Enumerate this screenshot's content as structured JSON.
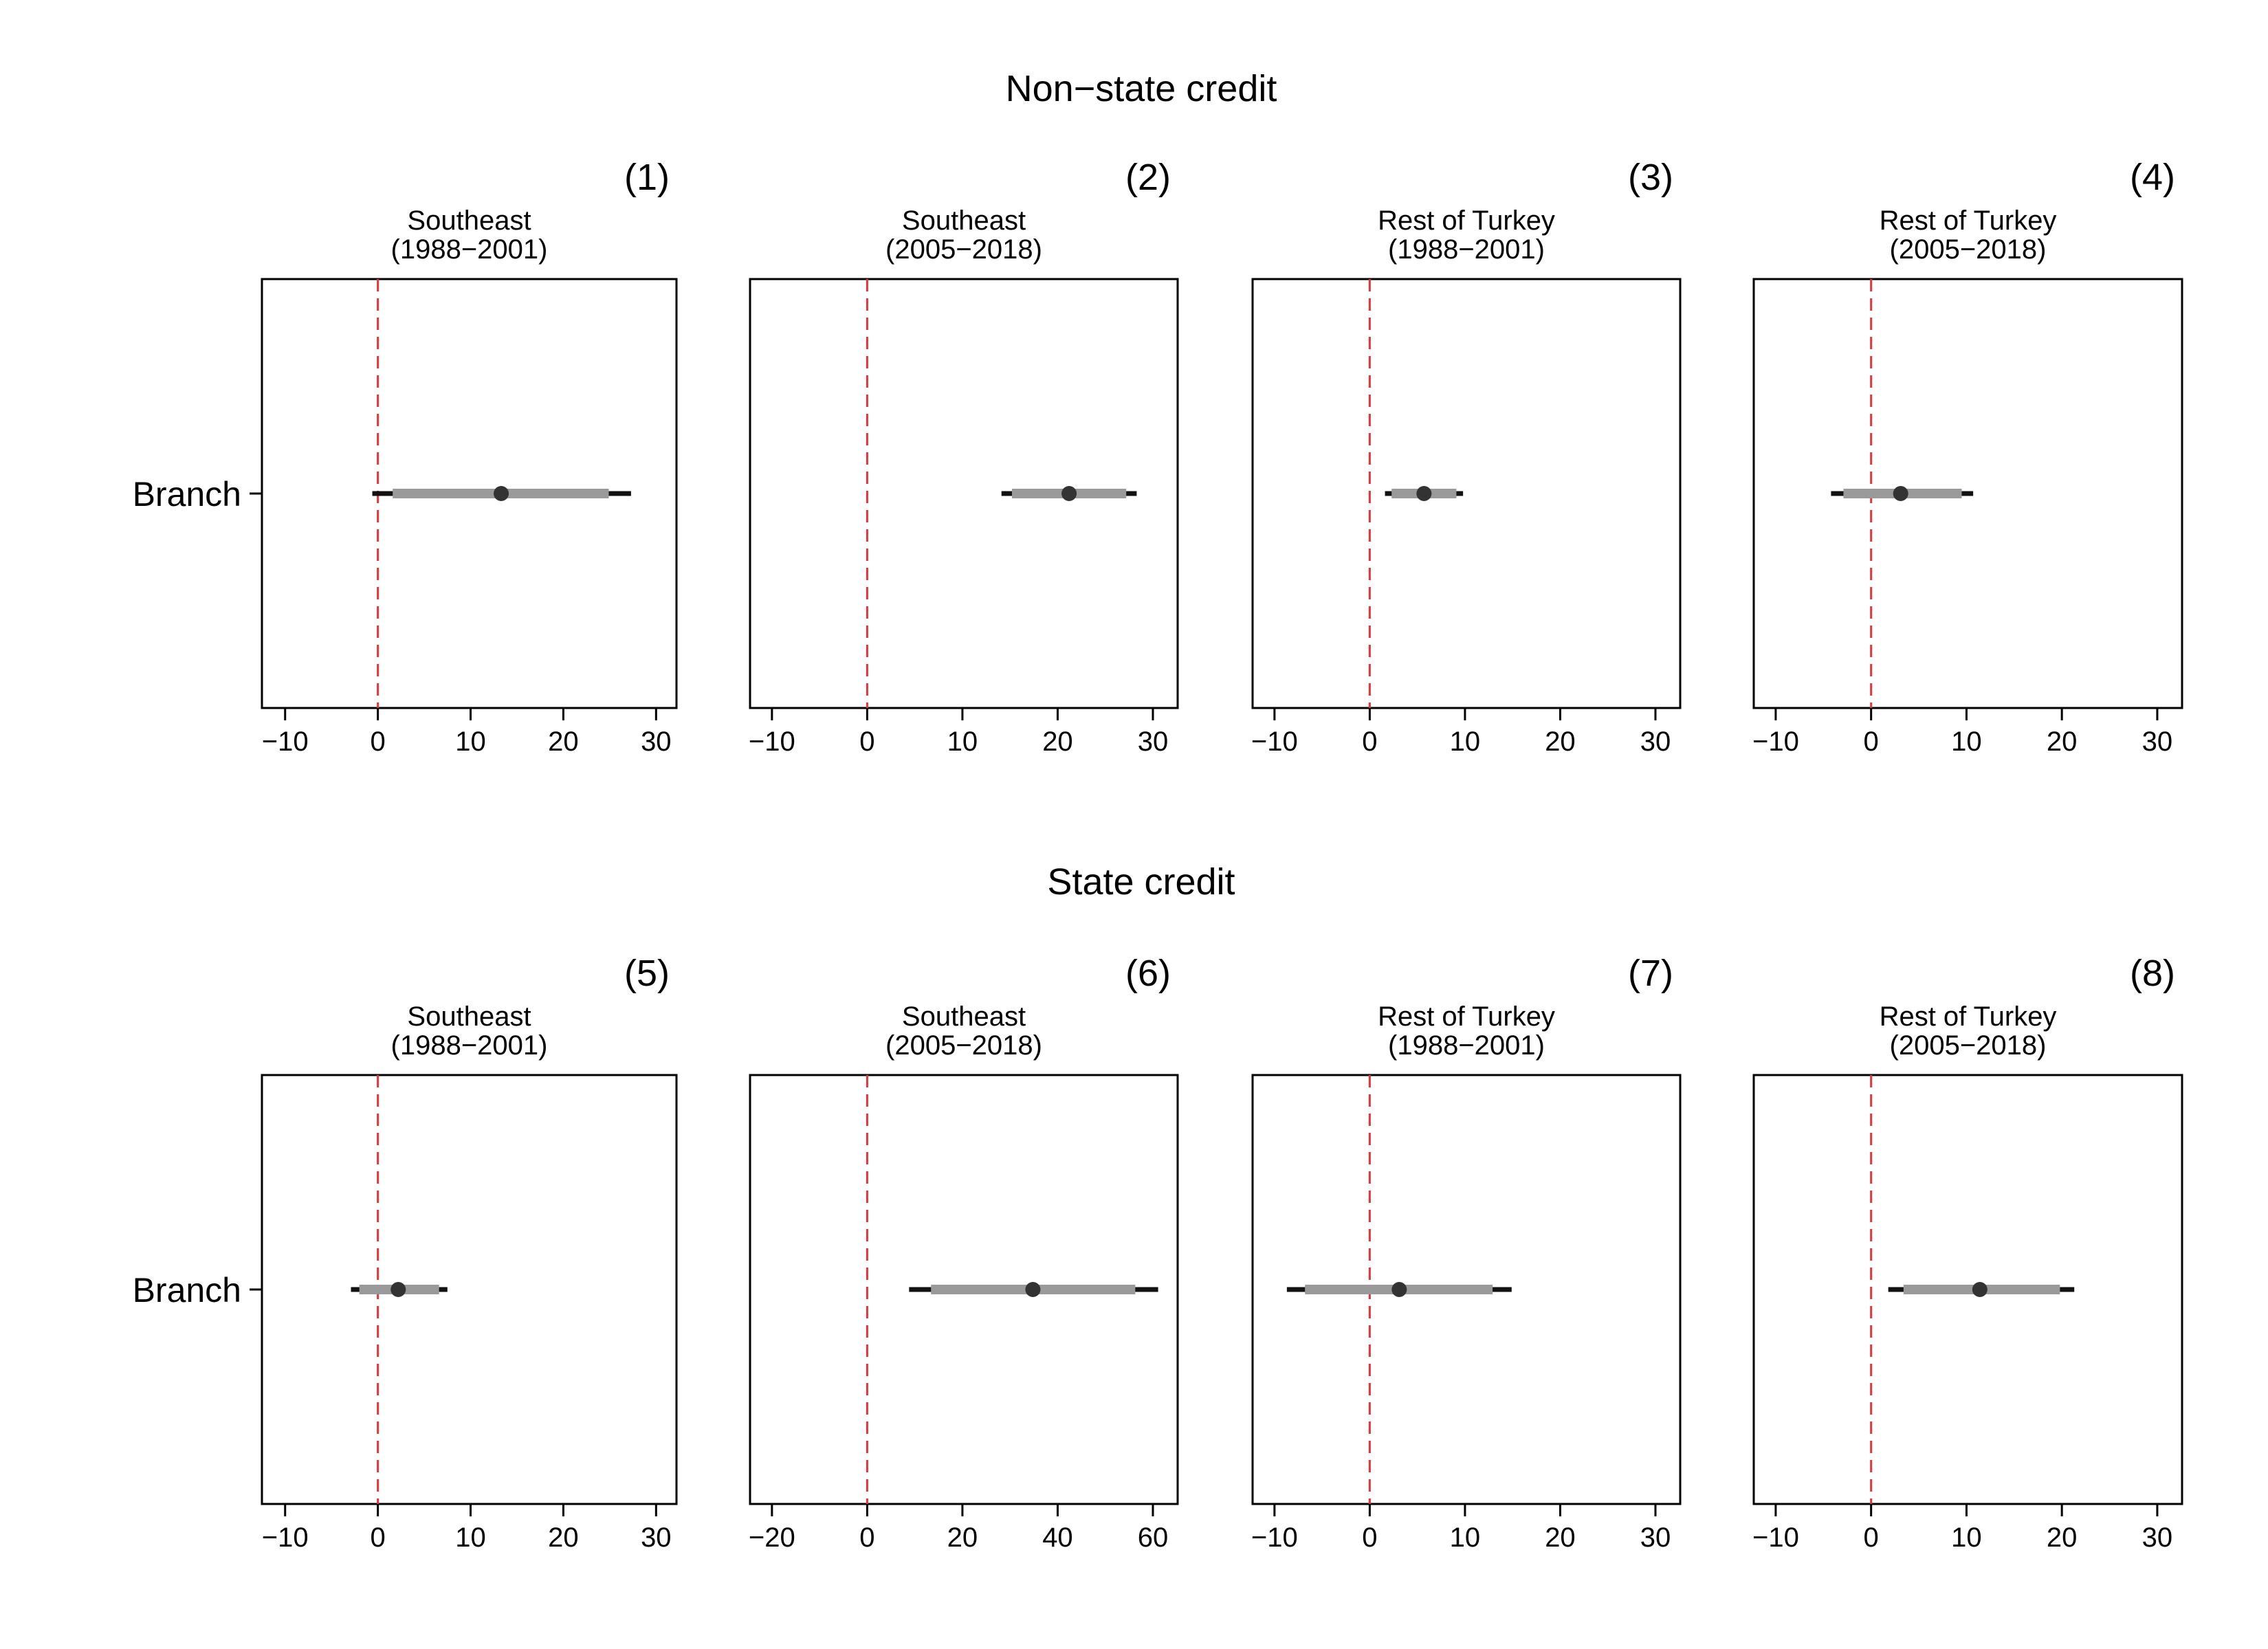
{
  "colors": {
    "frame": "#000000",
    "reference_line": "#e8333a",
    "ci_outer": "#111111",
    "ci_inner": "#9a9a9a",
    "point": "#333333"
  },
  "sections": [
    {
      "title": "Non−state credit"
    },
    {
      "title": "State credit"
    }
  ],
  "chart_data": [
    {
      "type": "coefficient-plot",
      "section": 0,
      "panel": "(1)",
      "subtitle": [
        "Southeast",
        "(1988−2001)"
      ],
      "row_label": "Branch",
      "estimate": 13.3,
      "ci_inner": [
        1.6,
        24.9
      ],
      "ci_outer": [
        -0.6,
        27.3
      ],
      "xlim": [
        -12.5,
        32.2
      ],
      "xticks": [
        -10,
        0,
        10,
        20,
        30
      ],
      "xtick_labels": [
        "−10",
        "0",
        "10",
        "20",
        "30"
      ],
      "reference_x": 0,
      "grid": false
    },
    {
      "type": "coefficient-plot",
      "section": 0,
      "panel": "(2)",
      "subtitle": [
        "Southeast",
        "(2005−2018)"
      ],
      "row_label": "Branch",
      "estimate": 21.2,
      "ci_inner": [
        15.2,
        27.2
      ],
      "ci_outer": [
        14.1,
        28.3
      ],
      "xlim": [
        -12.3,
        32.6
      ],
      "xticks": [
        -10,
        0,
        10,
        20,
        30
      ],
      "xtick_labels": [
        "−10",
        "0",
        "10",
        "20",
        "30"
      ],
      "reference_x": 0,
      "grid": false
    },
    {
      "type": "coefficient-plot",
      "section": 0,
      "panel": "(3)",
      "subtitle": [
        "Rest of Turkey",
        "(1988−2001)"
      ],
      "row_label": "Branch",
      "estimate": 5.7,
      "ci_inner": [
        2.3,
        9.1
      ],
      "ci_outer": [
        1.6,
        9.8
      ],
      "xlim": [
        -12.3,
        32.6
      ],
      "xticks": [
        -10,
        0,
        10,
        20,
        30
      ],
      "xtick_labels": [
        "−10",
        "0",
        "10",
        "20",
        "30"
      ],
      "reference_x": 0,
      "grid": false
    },
    {
      "type": "coefficient-plot",
      "section": 0,
      "panel": "(4)",
      "subtitle": [
        "Rest of Turkey",
        "(2005−2018)"
      ],
      "row_label": "Branch",
      "estimate": 3.1,
      "ci_inner": [
        -2.9,
        9.5
      ],
      "ci_outer": [
        -4.2,
        10.7
      ],
      "xlim": [
        -12.3,
        32.6
      ],
      "xticks": [
        -10,
        0,
        10,
        20,
        30
      ],
      "xtick_labels": [
        "−10",
        "0",
        "10",
        "20",
        "30"
      ],
      "reference_x": 0,
      "grid": false
    },
    {
      "type": "coefficient-plot",
      "section": 1,
      "panel": "(5)",
      "subtitle": [
        "Southeast",
        "(1988−2001)"
      ],
      "row_label": "Branch",
      "estimate": 2.2,
      "ci_inner": [
        -2.0,
        6.6
      ],
      "ci_outer": [
        -2.9,
        7.5
      ],
      "xlim": [
        -12.5,
        32.2
      ],
      "xticks": [
        -10,
        0,
        10,
        20,
        30
      ],
      "xtick_labels": [
        "−10",
        "0",
        "10",
        "20",
        "30"
      ],
      "reference_x": 0,
      "grid": false
    },
    {
      "type": "coefficient-plot",
      "section": 1,
      "panel": "(6)",
      "subtitle": [
        "Southeast",
        "(2005−2018)"
      ],
      "row_label": "Branch",
      "estimate": 34.8,
      "ci_inner": [
        13.4,
        56.3
      ],
      "ci_outer": [
        8.8,
        61.1
      ],
      "xlim": [
        -24.6,
        65.2
      ],
      "xticks": [
        -20,
        0,
        20,
        40,
        60
      ],
      "xtick_labels": [
        "−20",
        "0",
        "20",
        "40",
        "60"
      ],
      "reference_x": 0,
      "grid": false
    },
    {
      "type": "coefficient-plot",
      "section": 1,
      "panel": "(7)",
      "subtitle": [
        "Rest of Turkey",
        "(1988−2001)"
      ],
      "row_label": "Branch",
      "estimate": 3.1,
      "ci_inner": [
        -6.8,
        12.9
      ],
      "ci_outer": [
        -8.7,
        14.9
      ],
      "xlim": [
        -12.3,
        32.6
      ],
      "xticks": [
        -10,
        0,
        10,
        20,
        30
      ],
      "xtick_labels": [
        "−10",
        "0",
        "10",
        "20",
        "30"
      ],
      "reference_x": 0,
      "grid": false
    },
    {
      "type": "coefficient-plot",
      "section": 1,
      "panel": "(8)",
      "subtitle": [
        "Rest of Turkey",
        "(2005−2018)"
      ],
      "row_label": "Branch",
      "estimate": 11.4,
      "ci_inner": [
        3.4,
        19.8
      ],
      "ci_outer": [
        1.8,
        21.3
      ],
      "xlim": [
        -12.3,
        32.6
      ],
      "xticks": [
        -10,
        0,
        10,
        20,
        30
      ],
      "xtick_labels": [
        "−10",
        "0",
        "10",
        "20",
        "30"
      ],
      "reference_x": 0,
      "grid": false
    }
  ]
}
